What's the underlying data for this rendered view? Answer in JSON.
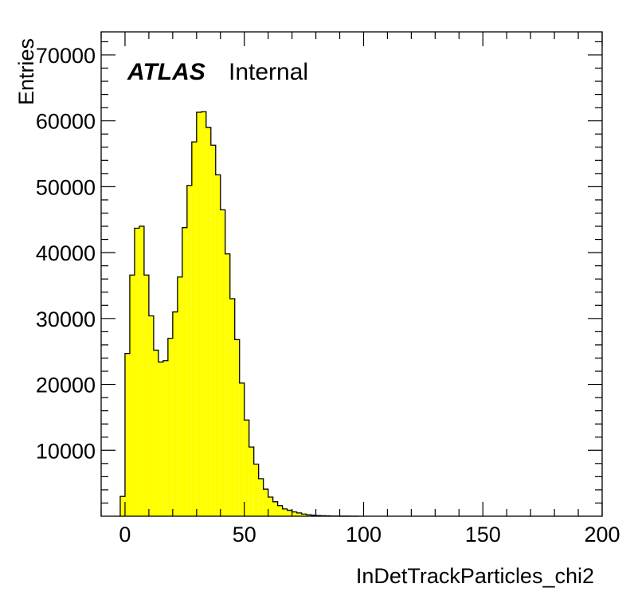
{
  "chart_data": {
    "type": "bar",
    "style": "histogram",
    "bin_width": 2,
    "x_start": -2,
    "xlim": [
      -10,
      200
    ],
    "ylim": [
      0,
      73500
    ],
    "x_ticks": [
      0,
      50,
      100,
      150,
      200
    ],
    "y_ticks": [
      10000,
      20000,
      30000,
      40000,
      50000,
      60000,
      70000
    ],
    "x_tick_labels": [
      "0",
      "50",
      "100",
      "150",
      "200"
    ],
    "y_tick_labels": [
      "10000",
      "20000",
      "30000",
      "40000",
      "50000",
      "60000",
      "70000"
    ],
    "xlabel": "InDetTrackParticles_chi2",
    "ylabel": "Entries",
    "fill_color": "#ffff00",
    "line_color": "#000000",
    "grid": false,
    "values": [
      3000,
      24700,
      36600,
      43700,
      44000,
      36600,
      30400,
      25200,
      23400,
      23600,
      27000,
      31000,
      36300,
      43800,
      50200,
      56800,
      61300,
      61400,
      59000,
      56300,
      51800,
      46500,
      39800,
      33000,
      26800,
      20200,
      14600,
      10500,
      7900,
      5700,
      4100,
      2900,
      2200,
      1600,
      1100,
      900,
      650,
      500,
      330,
      230,
      160,
      110,
      70,
      50,
      30,
      20,
      10,
      5,
      3,
      1
    ]
  },
  "annotation": {
    "atlas": "ATLAS",
    "label": "Internal"
  }
}
